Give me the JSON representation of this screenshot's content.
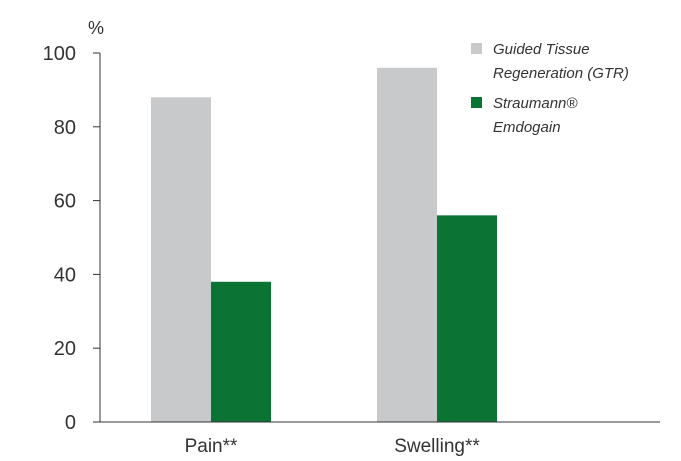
{
  "chart_data": {
    "type": "bar",
    "ylabel": "%",
    "ylim": [
      0,
      100
    ],
    "yticks": [
      0,
      20,
      40,
      60,
      80,
      100
    ],
    "categories": [
      "Pain**",
      "Swelling**"
    ],
    "series": [
      {
        "name": "Guided Tissue Regeneration (GTR)",
        "name_lines": [
          "Guided Tissue",
          "Regeneration (GTR)"
        ],
        "color": "#c8c9cb",
        "values": [
          88,
          96
        ]
      },
      {
        "name": "Straumann® Emdogain",
        "name_lines": [
          "Straumann®",
          "Emdogain"
        ],
        "color": "#0b7333",
        "values": [
          38,
          56
        ]
      }
    ],
    "grid": false,
    "legend_position": "top-right"
  }
}
